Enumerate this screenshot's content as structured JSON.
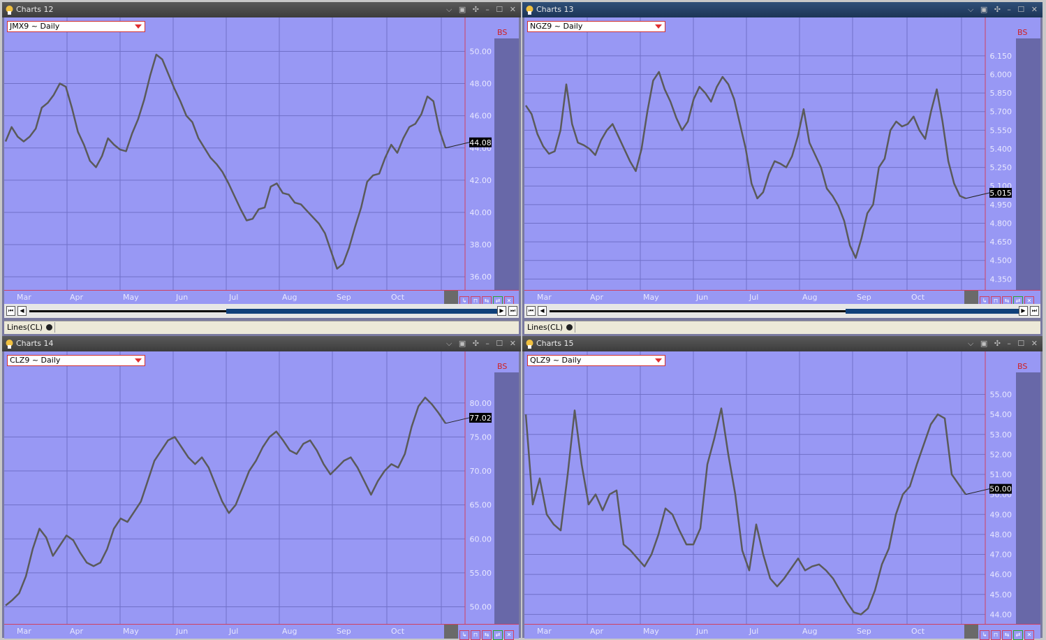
{
  "charts": [
    {
      "window_title": "Charts 12",
      "symbol": "JMX9 ~ Daily",
      "bs_label": "BS",
      "last_price": "44.08",
      "price_labels": [
        "50.00",
        "48.00",
        "46.00",
        "44.00",
        "42.00",
        "40.00",
        "38.00",
        "36.00"
      ],
      "months": [
        "Mar",
        "Apr",
        "May",
        "Jun",
        "Jul",
        "Aug",
        "Sep",
        "Oct"
      ],
      "status_label": "Lines(CL)",
      "y_range": [
        35.4,
        50.8
      ],
      "series": [
        44.4,
        45.3,
        44.7,
        44.4,
        44.7,
        45.2,
        46.5,
        46.8,
        47.3,
        48.0,
        47.8,
        46.5,
        45.0,
        44.2,
        43.2,
        42.8,
        43.5,
        44.6,
        44.2,
        43.9,
        43.8,
        44.9,
        45.8,
        47.0,
        48.5,
        49.8,
        49.5,
        48.6,
        47.7,
        46.9,
        46.0,
        45.6,
        44.6,
        44.0,
        43.4,
        43.0,
        42.5,
        41.8,
        41.0,
        40.2,
        39.5,
        39.6,
        40.2,
        40.3,
        41.6,
        41.8,
        41.2,
        41.1,
        40.6,
        40.5,
        40.1,
        39.7,
        39.3,
        38.7,
        37.6,
        36.5,
        36.8,
        37.8,
        39.1,
        40.3,
        41.9,
        42.3,
        42.4,
        43.4,
        44.2,
        43.7,
        44.6,
        45.3,
        45.5,
        46.1,
        47.2,
        46.9,
        45.1,
        44.0
      ],
      "value_format": 2
    },
    {
      "window_title": "Charts 13",
      "symbol": "NGZ9 ~ Daily",
      "bs_label": "BS",
      "last_price": "5.015",
      "price_labels": [
        "6.150",
        "6.000",
        "5.850",
        "5.700",
        "5.550",
        "5.400",
        "5.250",
        "5.100",
        "4.950",
        "4.800",
        "4.650",
        "4.500",
        "4.350"
      ],
      "months": [
        "Mar",
        "Apr",
        "May",
        "Jun",
        "Jul",
        "Aug",
        "Sep",
        "Oct"
      ],
      "status_label": "Lines(CL)",
      "y_range": [
        4.29,
        6.29
      ],
      "series": [
        5.75,
        5.68,
        5.52,
        5.42,
        5.36,
        5.38,
        5.55,
        5.92,
        5.6,
        5.45,
        5.43,
        5.4,
        5.35,
        5.47,
        5.55,
        5.6,
        5.5,
        5.4,
        5.3,
        5.22,
        5.4,
        5.7,
        5.95,
        6.02,
        5.88,
        5.78,
        5.65,
        5.55,
        5.62,
        5.8,
        5.9,
        5.85,
        5.78,
        5.9,
        5.98,
        5.92,
        5.8,
        5.6,
        5.4,
        5.12,
        5.0,
        5.05,
        5.2,
        5.3,
        5.28,
        5.25,
        5.34,
        5.5,
        5.72,
        5.45,
        5.35,
        5.25,
        5.08,
        5.02,
        4.94,
        4.82,
        4.62,
        4.52,
        4.68,
        4.88,
        4.95,
        5.25,
        5.32,
        5.55,
        5.62,
        5.58,
        5.6,
        5.66,
        5.55,
        5.48,
        5.7,
        5.88,
        5.62,
        5.3,
        5.12,
        5.02,
        5.0
      ],
      "value_format": 3
    },
    {
      "window_title": "Charts 14",
      "symbol": "CLZ9 ~ Daily",
      "bs_label": "BS",
      "last_price": "77.02",
      "price_labels": [
        "80.00",
        "75.00",
        "70.00",
        "65.00",
        "60.00",
        "55.00",
        "50.00"
      ],
      "months": [
        "Mar",
        "Apr",
        "May",
        "Jun",
        "Jul",
        "Aug",
        "Sep",
        "Oct"
      ],
      "status_label": "",
      "y_range": [
        48.0,
        84.5
      ],
      "series": [
        50.2,
        51.0,
        52.0,
        54.5,
        58.5,
        61.5,
        60.2,
        57.5,
        59.0,
        60.5,
        59.8,
        58.0,
        56.5,
        56.0,
        56.5,
        58.5,
        61.5,
        63.0,
        62.5,
        64.0,
        65.5,
        68.5,
        71.5,
        73.0,
        74.5,
        75.0,
        73.5,
        72.0,
        71.0,
        72.0,
        70.5,
        68.0,
        65.5,
        63.8,
        65.0,
        67.5,
        70.0,
        71.5,
        73.5,
        75.0,
        75.8,
        74.5,
        73.0,
        72.5,
        74.0,
        74.5,
        73.0,
        71.0,
        69.5,
        70.5,
        71.5,
        72.0,
        70.5,
        68.5,
        66.5,
        68.5,
        70.0,
        71.0,
        70.5,
        72.5,
        76.5,
        79.5,
        80.8,
        79.8,
        78.5,
        77.0
      ],
      "value_format": 2
    },
    {
      "window_title": "Charts 15",
      "symbol": "QLZ9 ~ Daily",
      "bs_label": "BS",
      "last_price": "50.00",
      "price_labels": [
        "55.00",
        "54.00",
        "53.00",
        "52.00",
        "51.00",
        "50.00",
        "49.00",
        "48.00",
        "47.00",
        "46.00",
        "45.00",
        "44.00"
      ],
      "months": [
        "Mar",
        "Apr",
        "May",
        "Jun",
        "Jul",
        "Aug",
        "Sep",
        "Oct"
      ],
      "status_label": "",
      "y_range": [
        43.7,
        56.1
      ],
      "series": [
        54.0,
        49.5,
        50.8,
        49.0,
        48.5,
        48.2,
        51.0,
        54.2,
        51.5,
        49.5,
        50.0,
        49.2,
        50.0,
        50.2,
        47.5,
        47.2,
        46.8,
        46.4,
        47.0,
        48.0,
        49.3,
        49.0,
        48.2,
        47.5,
        47.5,
        48.3,
        51.5,
        52.8,
        54.3,
        52.0,
        50.0,
        47.2,
        46.2,
        48.5,
        47.0,
        45.8,
        45.4,
        45.8,
        46.3,
        46.8,
        46.2,
        46.4,
        46.5,
        46.2,
        45.8,
        45.2,
        44.6,
        44.1,
        44.0,
        44.3,
        45.2,
        46.5,
        47.3,
        49.0,
        50.0,
        50.4,
        51.5,
        52.5,
        53.5,
        54.0,
        53.8,
        51.0,
        50.5,
        50.0
      ],
      "value_format": 2
    }
  ]
}
